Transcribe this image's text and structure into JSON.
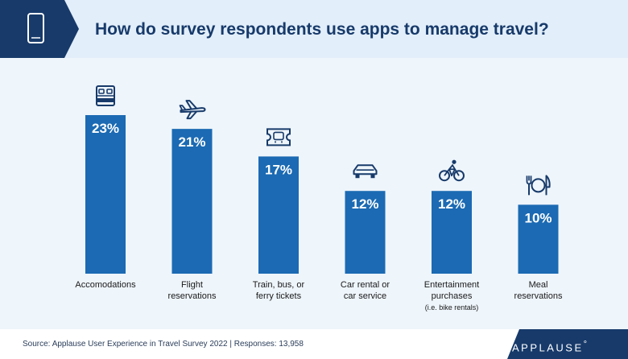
{
  "header": {
    "title": "How do survey respondents use apps to manage travel?",
    "icon": "smartphone-icon"
  },
  "chart_data": {
    "type": "bar",
    "title": "How do survey respondents use apps to manage travel?",
    "categories": [
      [
        "Accomodations"
      ],
      [
        "Flight",
        "reservations"
      ],
      [
        "Train, bus, or",
        "ferry tickets"
      ],
      [
        "Car rental or",
        "car service"
      ],
      [
        "Entertainment",
        "purchases",
        "(i.e. bike rentals)"
      ],
      [
        "Meal",
        "reservations"
      ]
    ],
    "values": [
      23,
      21,
      17,
      12,
      12,
      10
    ],
    "value_labels": [
      "23%",
      "21%",
      "17%",
      "12%",
      "12%",
      "10%"
    ],
    "icons": [
      "bed-icon",
      "airplane-icon",
      "ticket-icon",
      "car-icon",
      "bicycle-icon",
      "fork-knife-icon"
    ],
    "ylim": [
      0,
      23
    ],
    "grid": false,
    "legend": "none",
    "xlabel": "",
    "ylabel": ""
  },
  "footer": {
    "source": "Source: Applause User Experience in Travel Survey 2022 | Responses: 13,958",
    "logo_text": "APPLAUSE",
    "logo_mark": "°"
  },
  "colors": {
    "header_bg": "#e2eefa",
    "plot_bg": "#eef5fb",
    "bar": "#1b6ab3",
    "dark_navy": "#173a6a",
    "text": "#1a1a1a"
  }
}
